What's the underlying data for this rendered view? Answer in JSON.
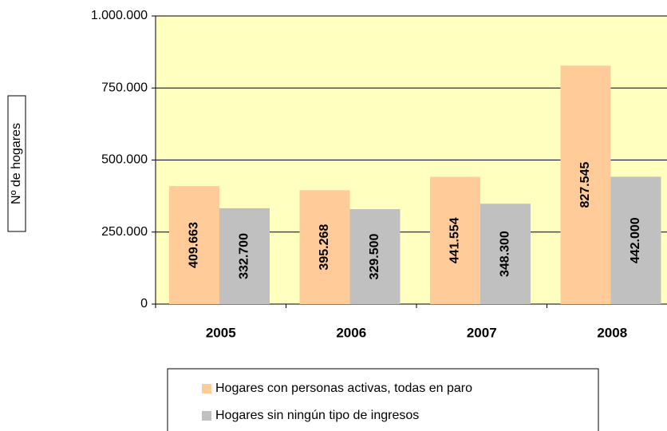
{
  "chart_data": {
    "type": "bar",
    "y_label": "Nº de hogares",
    "categories": [
      "2005",
      "2006",
      "2007",
      "2008"
    ],
    "series": [
      {
        "name": "Hogares con personas activas, todas en paro",
        "color": "#ffcc99",
        "values": [
          409663,
          395268,
          441554,
          827545
        ],
        "value_labels": [
          "409.663",
          "395.268",
          "441.554",
          "827.545"
        ]
      },
      {
        "name": "Hogares sin ningún tipo de ingresos",
        "color": "#c0c0c0",
        "values": [
          332700,
          329500,
          348300,
          442000
        ],
        "value_labels": [
          "332.700",
          "329.500",
          "348.300",
          "442.000"
        ]
      }
    ],
    "ylim": [
      0,
      1000000
    ],
    "yticks": [
      0,
      {
        "value": 250000,
        "label": "250.000"
      },
      {
        "value": 500000,
        "label": "500.000"
      },
      {
        "value": 750000,
        "label": "750.000"
      },
      {
        "value": 1000000,
        "label": "1.000.000"
      }
    ],
    "grid": true,
    "plot_background": "#ffffc0",
    "legend": "bottom"
  }
}
